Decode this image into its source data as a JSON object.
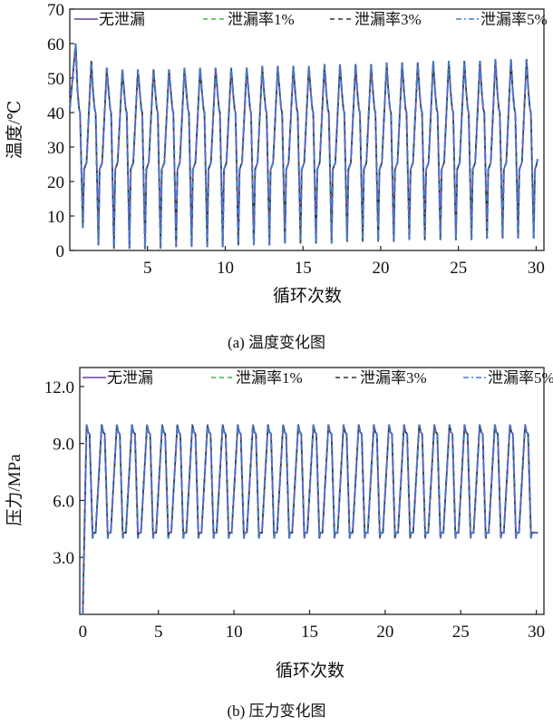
{
  "chart_data": [
    {
      "type": "line",
      "caption": "(a) 温度变化图",
      "xlabel": "循环次数",
      "ylabel": "温度/℃",
      "xlim": [
        0,
        30.5
      ],
      "ylim": [
        0,
        70
      ],
      "xticks": [
        "5",
        "10",
        "15",
        "20",
        "25",
        "30"
      ],
      "yticks": [
        "0",
        "10",
        "20",
        "30",
        "40",
        "50",
        "60",
        "70"
      ],
      "grid": false,
      "legend": "top",
      "cycles": 30,
      "cycle_peaks": [
        60,
        55,
        53,
        52.5,
        52.5,
        52.5,
        52.5,
        53,
        53,
        53,
        53,
        53,
        53.5,
        53.5,
        53.5,
        53.5,
        54,
        54,
        54,
        54,
        54.5,
        54.5,
        54.5,
        55,
        55,
        55,
        55,
        55.5,
        55.5,
        55.5
      ],
      "cycle_troughs": [
        6.5,
        1.5,
        0.5,
        0.5,
        0.5,
        0.5,
        1,
        1,
        1,
        1,
        1.5,
        1.5,
        1.5,
        2,
        2,
        2,
        2,
        2.5,
        2.5,
        2.5,
        2.5,
        3,
        3,
        3,
        3,
        3,
        3.5,
        3.5,
        3.5,
        3.5
      ],
      "shoulder": 40,
      "plateau": 24.5,
      "series": [
        {
          "name": "无泄漏",
          "color": "#6b3fa0",
          "dash": "solid"
        },
        {
          "name": "泄漏率1%",
          "color": "#3cb44b",
          "dash": "dashed"
        },
        {
          "name": "泄漏率3%",
          "color": "#333333",
          "dash": "dashed"
        },
        {
          "name": "泄漏率5%",
          "color": "#4a78c8",
          "dash": "dashdot"
        }
      ]
    },
    {
      "type": "line",
      "caption": "(b) 压力变化图",
      "xlabel": "循环次数",
      "ylabel": "压力/MPa",
      "xlim": [
        -0.2,
        30.5
      ],
      "ylim": [
        0,
        13
      ],
      "xticks": [
        "0",
        "5",
        "10",
        "15",
        "20",
        "25",
        "30"
      ],
      "yticks": [
        "3.0",
        "6.0",
        "9.0",
        "12.0"
      ],
      "grid": false,
      "legend": "top",
      "cycles": 30,
      "cycle_peak": 10.0,
      "high_plateau": 9.6,
      "cycle_trough": 4.0,
      "low_plateau": 4.3,
      "series": [
        {
          "name": "无泄漏",
          "color": "#6b3fa0",
          "dash": "solid"
        },
        {
          "name": "泄漏率1%",
          "color": "#3cb44b",
          "dash": "dashed"
        },
        {
          "name": "泄漏率3%",
          "color": "#333333",
          "dash": "dashed"
        },
        {
          "name": "泄漏率5%",
          "color": "#4a78c8",
          "dash": "dashdot"
        }
      ]
    }
  ]
}
